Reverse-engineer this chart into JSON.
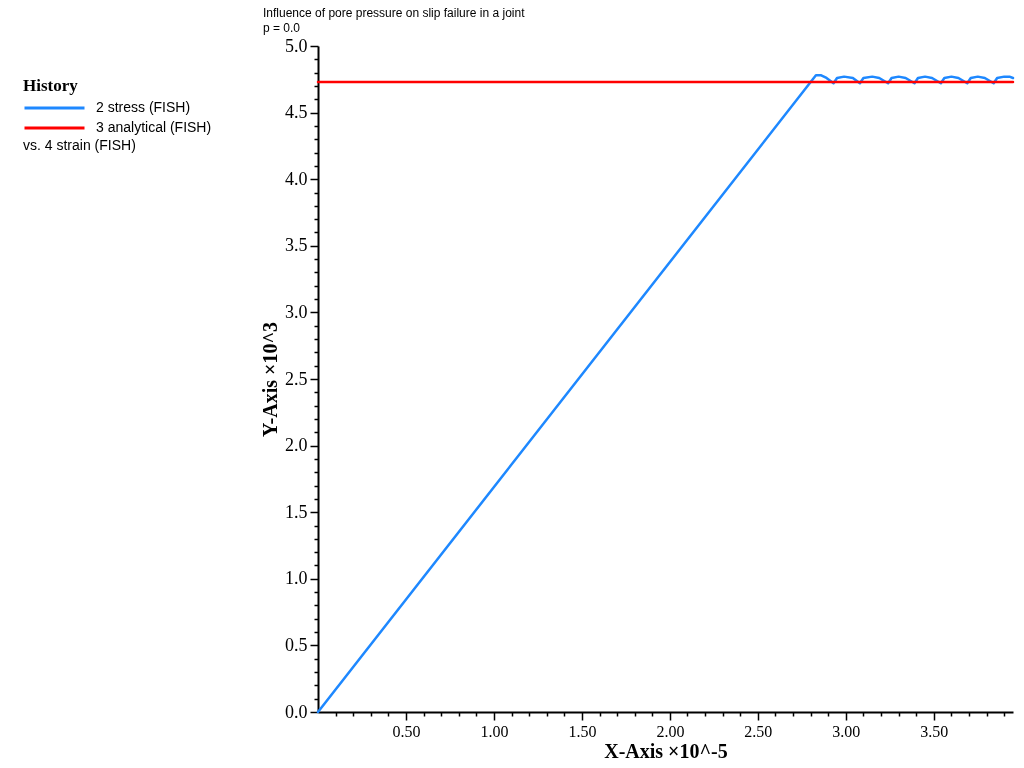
{
  "chart_data": {
    "type": "line",
    "title": "Influence of pore pressure on slip failure in a joint",
    "subtitle": "p = 0.0",
    "xlabel": "X-Axis ×10^-5",
    "ylabel": "Y-Axis ×10^3",
    "legend_title": "History",
    "annotations": [
      "vs. 4 strain (FISH)"
    ],
    "legend": "left",
    "xlim": [
      0,
      3.95
    ],
    "ylim": [
      0,
      5.0
    ],
    "xticks": [
      {
        "value": 0.1,
        "label": null
      },
      {
        "value": 0.2,
        "label": null
      },
      {
        "value": 0.3,
        "label": null
      },
      {
        "value": 0.4,
        "label": null
      },
      {
        "value": 0.5,
        "label": "0.50"
      },
      {
        "value": 0.6,
        "label": null
      },
      {
        "value": 0.7,
        "label": null
      },
      {
        "value": 0.8,
        "label": null
      },
      {
        "value": 0.9,
        "label": null
      },
      {
        "value": 1.0,
        "label": "1.00"
      },
      {
        "value": 1.1,
        "label": null
      },
      {
        "value": 1.2,
        "label": null
      },
      {
        "value": 1.3,
        "label": null
      },
      {
        "value": 1.4,
        "label": null
      },
      {
        "value": 1.5,
        "label": "1.50"
      },
      {
        "value": 1.6,
        "label": null
      },
      {
        "value": 1.7,
        "label": null
      },
      {
        "value": 1.8,
        "label": null
      },
      {
        "value": 1.9,
        "label": null
      },
      {
        "value": 2.0,
        "label": "2.00"
      },
      {
        "value": 2.1,
        "label": null
      },
      {
        "value": 2.2,
        "label": null
      },
      {
        "value": 2.3,
        "label": null
      },
      {
        "value": 2.4,
        "label": null
      },
      {
        "value": 2.5,
        "label": "2.50"
      },
      {
        "value": 2.6,
        "label": null
      },
      {
        "value": 2.7,
        "label": null
      },
      {
        "value": 2.8,
        "label": null
      },
      {
        "value": 2.9,
        "label": null
      },
      {
        "value": 3.0,
        "label": "3.00"
      },
      {
        "value": 3.1,
        "label": null
      },
      {
        "value": 3.2,
        "label": null
      },
      {
        "value": 3.3,
        "label": null
      },
      {
        "value": 3.4,
        "label": null
      },
      {
        "value": 3.5,
        "label": "3.50"
      },
      {
        "value": 3.6,
        "label": null
      },
      {
        "value": 3.7,
        "label": null
      },
      {
        "value": 3.8,
        "label": null
      },
      {
        "value": 3.9,
        "label": null
      }
    ],
    "yticks": [
      {
        "value": 0,
        "label": "0.0"
      },
      {
        "value": 0.1,
        "label": null
      },
      {
        "value": 0.2,
        "label": null
      },
      {
        "value": 0.3,
        "label": null
      },
      {
        "value": 0.4,
        "label": null
      },
      0.5,
      {
        "value": 0.6,
        "label": null
      },
      {
        "value": 0.7,
        "label": null
      },
      {
        "value": 0.8,
        "label": null
      },
      {
        "value": 0.9,
        "label": null
      },
      {
        "value": 1,
        "label": "1.0"
      },
      {
        "value": 1.1,
        "label": null
      },
      {
        "value": 1.2,
        "label": null
      },
      {
        "value": 1.3,
        "label": null
      },
      {
        "value": 1.4,
        "label": null
      },
      1.5,
      {
        "value": 1.6,
        "label": null
      },
      {
        "value": 1.7,
        "label": null
      },
      {
        "value": 1.8,
        "label": null
      },
      {
        "value": 1.9,
        "label": null
      },
      {
        "value": 2,
        "label": "2.0"
      },
      {
        "value": 2.1,
        "label": null
      },
      {
        "value": 2.2,
        "label": null
      },
      {
        "value": 2.3,
        "label": null
      },
      {
        "value": 2.4,
        "label": null
      },
      2.5,
      {
        "value": 2.6,
        "label": null
      },
      {
        "value": 2.7,
        "label": null
      },
      {
        "value": 2.8,
        "label": null
      },
      {
        "value": 2.9,
        "label": null
      },
      {
        "value": 3,
        "label": "3.0"
      },
      {
        "value": 3.1,
        "label": null
      },
      {
        "value": 3.2,
        "label": null
      },
      {
        "value": 3.3,
        "label": null
      },
      {
        "value": 3.4,
        "label": null
      },
      3.5,
      {
        "value": 3.6,
        "label": null
      },
      {
        "value": 3.7,
        "label": null
      },
      {
        "value": 3.8,
        "label": null
      },
      {
        "value": 3.9,
        "label": null
      },
      {
        "value": 4,
        "label": "4.0"
      },
      {
        "value": 4.1,
        "label": null
      },
      {
        "value": 4.2,
        "label": null
      },
      {
        "value": 4.3,
        "label": null
      },
      {
        "value": 4.4,
        "label": null
      },
      4.5,
      {
        "value": 4.6,
        "label": null
      },
      {
        "value": 4.7,
        "label": null
      },
      {
        "value": 4.8,
        "label": null
      },
      {
        "value": 4.9,
        "label": null
      },
      {
        "value": 5,
        "label": "5.0"
      }
    ],
    "series": [
      {
        "name": "2 stress (FISH)",
        "color": "#1e88ff",
        "x": [
          0,
          2.83,
          2.86,
          2.89,
          2.93,
          2.95,
          2.99,
          3.04,
          3.08,
          3.1,
          3.15,
          3.19,
          3.24,
          3.26,
          3.3,
          3.34,
          3.39,
          3.41,
          3.45,
          3.49,
          3.54,
          3.56,
          3.6,
          3.64,
          3.69,
          3.71,
          3.75,
          3.79,
          3.84,
          3.86,
          3.9,
          3.93,
          3.95
        ],
        "values": [
          0,
          4.78,
          4.78,
          4.76,
          4.72,
          4.76,
          4.77,
          4.76,
          4.72,
          4.76,
          4.77,
          4.76,
          4.72,
          4.76,
          4.77,
          4.76,
          4.72,
          4.76,
          4.77,
          4.76,
          4.72,
          4.76,
          4.77,
          4.76,
          4.72,
          4.76,
          4.77,
          4.76,
          4.72,
          4.76,
          4.77,
          4.77,
          4.76
        ]
      },
      {
        "name": "3 analytical (FISH)",
        "color": "#ff0000",
        "x": [
          0,
          3.95
        ],
        "values": [
          4.73,
          4.73
        ]
      }
    ]
  }
}
